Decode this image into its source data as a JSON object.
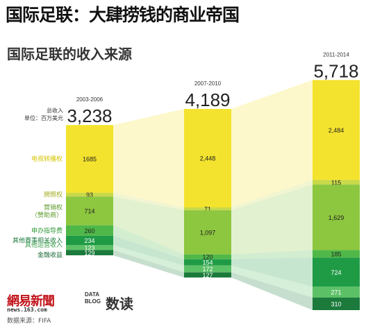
{
  "title": "国际足联：大肆捞钱的商业帝国",
  "subtitle": "国际足联的收入来源",
  "legend_total_label": "总收入",
  "legend_unit_label": "单位：百万美元",
  "footer": {
    "logo": "網易新聞",
    "url": "news.163.com",
    "source": "数据来源：FIFA",
    "datablog": "DATA BLOG",
    "datablog_cn": "数读"
  },
  "colors": {
    "电视转播权": "#f4e32e",
    "牌照权": "#c8d94a",
    "营销权（赞助商）": "#8dc63f",
    "申办指导费": "#4fb848",
    "其他赛事相关收入": "#1f9b45",
    "其他运营收入": "#5cc067",
    "金融收益": "#1b7a3c"
  },
  "chart_data": {
    "type": "bar",
    "categories": [
      "2003-2006",
      "2007-2010",
      "2011-2014"
    ],
    "totals": [
      "3,238",
      "4,189",
      "5,718"
    ],
    "series": [
      {
        "name": "电视转播权",
        "values": [
          1685,
          2448,
          2484
        ],
        "labels": [
          "1685",
          "2,448",
          "2,484"
        ]
      },
      {
        "name": "牌照权",
        "values": [
          93,
          71,
          115
        ],
        "labels": [
          "93",
          "71",
          "115"
        ]
      },
      {
        "name": "营销权（赞助商）",
        "values": [
          714,
          1097,
          1629
        ],
        "labels": [
          "714",
          "1,097",
          "1,629"
        ]
      },
      {
        "name": "申办指导费",
        "values": [
          260,
          120,
          185
        ],
        "labels": [
          "260",
          "120",
          "185"
        ]
      },
      {
        "name": "其他赛事相关收入",
        "values": [
          234,
          154,
          724
        ],
        "labels": [
          "234",
          "154",
          "724"
        ]
      },
      {
        "name": "其他运营收入",
        "values": [
          123,
          172,
          271
        ],
        "labels": [
          "123",
          "172",
          "271"
        ]
      },
      {
        "name": "金融收益",
        "values": [
          129,
          127,
          310
        ],
        "labels": [
          "129",
          "127",
          "310"
        ]
      }
    ]
  }
}
